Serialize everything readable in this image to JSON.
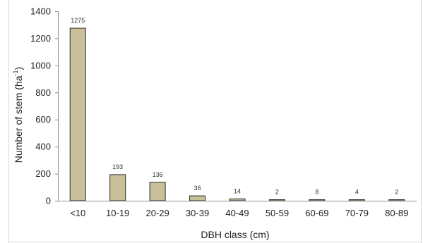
{
  "chart_data": {
    "type": "bar",
    "categories": [
      "<10",
      "10-19",
      "20-29",
      "30-39",
      "40-49",
      "50-59",
      "60-69",
      "70-79",
      "80-89"
    ],
    "values": [
      1275,
      193,
      136,
      36,
      14,
      2,
      8,
      4,
      2
    ],
    "data_labels": [
      "1275",
      "193",
      "136",
      "36",
      "14",
      "2",
      "8",
      "4",
      "2"
    ],
    "xlabel": "DBH class (cm)",
    "ylabel": {
      "main": "Number of stem (ha",
      "sup": "-1",
      "close": ")"
    },
    "ylim": [
      0,
      1400
    ],
    "yticks": [
      0,
      200,
      400,
      600,
      800,
      1000,
      1200,
      1400
    ],
    "ytick_labels": [
      "0",
      "200",
      "400",
      "600",
      "800",
      "1000",
      "1200",
      "1400"
    ],
    "grid": false,
    "legend": "none",
    "colors": {
      "bar_fill": "#c9bf99",
      "bar_stroke": "#2a2a2a",
      "axis": "#8c8c8c",
      "frame": "#d4d4d4"
    }
  }
}
